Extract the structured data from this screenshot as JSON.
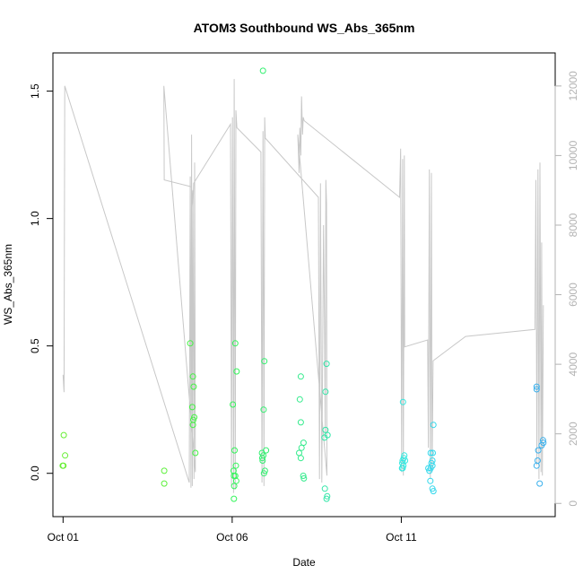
{
  "chart_data": {
    "type": "scatter",
    "title": "ATOM3 Southbound WS_Abs_365nm",
    "xlabel": "Date",
    "ylabel": "WS_Abs_365nm",
    "x_ticks": [
      "Oct 01",
      "Oct 06",
      "Oct 11"
    ],
    "y_ticks": [
      "0.0",
      "0.5",
      "1.0",
      "1.5"
    ],
    "y_tick_values": [
      0.0,
      0.5,
      1.0,
      1.5
    ],
    "y_right_ticks": [
      "0",
      "2000",
      "4000",
      "6000",
      "8000",
      "10000",
      "12000"
    ],
    "y_right_tick_values": [
      0,
      2000,
      4000,
      6000,
      8000,
      10000,
      12000
    ],
    "x_unit": "days after Oct 01",
    "xlim": [
      -0.3,
      14.55
    ],
    "ylim": [
      -0.17,
      1.65
    ],
    "y_right_lim": [
      -380,
      12950
    ],
    "right_axis_color": "#b3b3b3",
    "series": [
      {
        "values": [
          [
            0.02,
            0.15,
            "#66ee33"
          ],
          [
            0.06,
            0.07,
            "#66ee33"
          ],
          [
            -0.01,
            0.03,
            "#66ee33"
          ],
          [
            0.01,
            0.03,
            "#66ee33"
          ],
          [
            2.99,
            0.01,
            "#5cf03a"
          ],
          [
            2.99,
            -0.04,
            "#5cf03a"
          ],
          [
            3.76,
            0.51,
            "#44f444"
          ],
          [
            3.84,
            0.38,
            "#44f444"
          ],
          [
            3.86,
            0.34,
            "#44f444"
          ],
          [
            3.82,
            0.26,
            "#44f444"
          ],
          [
            3.88,
            0.22,
            "#44f444"
          ],
          [
            3.85,
            0.21,
            "#44f444"
          ],
          [
            3.84,
            0.19,
            "#44f444"
          ],
          [
            3.91,
            0.08,
            "#44f444"
          ],
          [
            5.02,
            0.27,
            "#33f55a"
          ],
          [
            5.09,
            0.51,
            "#33f55a"
          ],
          [
            5.13,
            0.4,
            "#33f55a"
          ],
          [
            5.07,
            0.09,
            "#33f55a"
          ],
          [
            5.11,
            0.03,
            "#33f55a"
          ],
          [
            5.04,
            0.01,
            "#33f55a"
          ],
          [
            5.05,
            -0.01,
            "#33f55a"
          ],
          [
            5.09,
            -0.01,
            "#33f55a"
          ],
          [
            5.12,
            -0.03,
            "#33f55a"
          ],
          [
            5.06,
            -0.05,
            "#33f55a"
          ],
          [
            5.05,
            -0.1,
            "#33f55a"
          ],
          [
            5.91,
            1.58,
            "#33f070"
          ],
          [
            5.88,
            0.08,
            "#33f070"
          ],
          [
            5.92,
            0.07,
            "#33f070"
          ],
          [
            5.89,
            0.06,
            "#33f070"
          ],
          [
            5.9,
            0.05,
            "#33f070"
          ],
          [
            5.95,
            0.44,
            "#33f070"
          ],
          [
            5.93,
            0.25,
            "#33f070"
          ],
          [
            6.0,
            0.09,
            "#33f070"
          ],
          [
            5.97,
            0.01,
            "#33f070"
          ],
          [
            5.94,
            0.0,
            "#33f070"
          ],
          [
            7.03,
            0.38,
            "#33eb8c"
          ],
          [
            7.0,
            0.29,
            "#33eb8c"
          ],
          [
            7.03,
            0.2,
            "#33eb8c"
          ],
          [
            7.11,
            0.12,
            "#33eb8c"
          ],
          [
            7.05,
            0.1,
            "#33eb8c"
          ],
          [
            6.98,
            0.08,
            "#33eb8c"
          ],
          [
            7.03,
            0.06,
            "#33eb8c"
          ],
          [
            7.1,
            -0.01,
            "#33eb8c"
          ],
          [
            7.12,
            -0.02,
            "#33eb8c"
          ],
          [
            7.79,
            0.43,
            "#33e6a8"
          ],
          [
            7.76,
            0.32,
            "#33e6a8"
          ],
          [
            7.76,
            0.17,
            "#33e6a8"
          ],
          [
            7.82,
            0.15,
            "#33e6a8"
          ],
          [
            7.73,
            0.14,
            "#33e6a8"
          ],
          [
            7.74,
            -0.06,
            "#33e6a8"
          ],
          [
            7.81,
            -0.09,
            "#33e6a8"
          ],
          [
            7.79,
            -0.1,
            "#33e6a8"
          ],
          [
            10.05,
            0.28,
            "#33e8e0"
          ],
          [
            10.09,
            0.07,
            "#33e8e0"
          ],
          [
            10.07,
            0.06,
            "#33e8e0"
          ],
          [
            10.04,
            0.05,
            "#33e8e0"
          ],
          [
            10.11,
            0.05,
            "#33e8e0"
          ],
          [
            10.03,
            0.04,
            "#33e8e0"
          ],
          [
            10.06,
            0.03,
            "#33e8e0"
          ],
          [
            10.04,
            0.02,
            "#33e8e0"
          ],
          [
            10.02,
            0.02,
            "#33e8e0"
          ],
          [
            10.95,
            0.19,
            "#33d8ec"
          ],
          [
            10.87,
            0.08,
            "#33d8ec"
          ],
          [
            10.93,
            0.08,
            "#33d8ec"
          ],
          [
            10.92,
            0.05,
            "#33d8ec"
          ],
          [
            10.89,
            0.04,
            "#33d8ec"
          ],
          [
            10.92,
            0.03,
            "#33d8ec"
          ],
          [
            10.8,
            0.02,
            "#33d8ec"
          ],
          [
            10.87,
            0.02,
            "#33d8ec"
          ],
          [
            10.83,
            0.01,
            "#33d8ec"
          ],
          [
            10.86,
            -0.03,
            "#33d8ec"
          ],
          [
            10.92,
            -0.06,
            "#33d8ec"
          ],
          [
            10.95,
            -0.07,
            "#33d8ec"
          ],
          [
            14.0,
            0.34,
            "#3ab0ec"
          ],
          [
            14.0,
            0.33,
            "#3ab0ec"
          ],
          [
            14.19,
            0.13,
            "#3ab0ec"
          ],
          [
            14.2,
            0.12,
            "#3ab0ec"
          ],
          [
            14.15,
            0.11,
            "#3ab0ec"
          ],
          [
            14.05,
            0.09,
            "#3ab0ec"
          ],
          [
            14.03,
            0.05,
            "#3ab0ec"
          ],
          [
            14.0,
            0.03,
            "#3ab0ec"
          ],
          [
            14.09,
            -0.04,
            "#3ab0ec"
          ]
        ]
      }
    ],
    "line_color": "#c8c8c8",
    "secondary_line_y_right": [
      [
        0.0,
        3700
      ],
      [
        0.03,
        3200
      ],
      [
        0.05,
        12000
      ],
      [
        3.73,
        600
      ],
      [
        3.76,
        9400
      ],
      [
        3.78,
        450
      ],
      [
        3.8,
        10600
      ],
      [
        3.82,
        500
      ],
      [
        3.84,
        9000
      ],
      [
        3.87,
        700
      ],
      [
        3.89,
        9800
      ],
      [
        3.91,
        900
      ],
      [
        2.98,
        12000
      ],
      [
        2.99,
        9300
      ],
      [
        3.8,
        9100
      ],
      [
        3.84,
        8500
      ],
      [
        3.86,
        9200
      ],
      [
        4.95,
        10900
      ],
      [
        4.98,
        500
      ],
      [
        5.01,
        11100
      ],
      [
        5.04,
        300
      ],
      [
        5.06,
        12200
      ],
      [
        5.09,
        400
      ],
      [
        5.11,
        11300
      ],
      [
        5.14,
        10800
      ],
      [
        5.85,
        10100
      ],
      [
        5.88,
        600
      ],
      [
        5.91,
        10700
      ],
      [
        5.94,
        500
      ],
      [
        5.96,
        11100
      ],
      [
        5.98,
        10500
      ],
      [
        7.55,
        8800
      ],
      [
        7.58,
        700
      ],
      [
        7.61,
        9200
      ],
      [
        7.65,
        600
      ],
      [
        7.7,
        8000
      ],
      [
        7.73,
        5200
      ],
      [
        7.75,
        1900
      ],
      [
        7.77,
        9300
      ],
      [
        7.79,
        8600
      ],
      [
        7.8,
        800
      ],
      [
        6.94,
        10600
      ],
      [
        6.98,
        9500
      ],
      [
        7.0,
        10800
      ],
      [
        7.03,
        10000
      ],
      [
        7.05,
        11700
      ],
      [
        7.08,
        10600
      ],
      [
        7.1,
        11100
      ],
      [
        7.13,
        11000
      ],
      [
        9.95,
        8800
      ],
      [
        9.98,
        10200
      ],
      [
        10.01,
        900
      ],
      [
        10.04,
        9900
      ],
      [
        10.06,
        800
      ],
      [
        10.09,
        10000
      ],
      [
        10.1,
        4500
      ],
      [
        10.78,
        4700
      ],
      [
        10.8,
        1600
      ],
      [
        10.83,
        9600
      ],
      [
        10.86,
        700
      ],
      [
        10.89,
        9500
      ],
      [
        10.91,
        900
      ],
      [
        10.94,
        4100
      ],
      [
        11.9,
        4800
      ],
      [
        13.95,
        5000
      ],
      [
        13.98,
        9300
      ],
      [
        14.01,
        1100
      ],
      [
        14.04,
        9600
      ],
      [
        14.07,
        700
      ],
      [
        14.1,
        9800
      ],
      [
        14.13,
        900
      ],
      [
        14.15,
        7500
      ],
      [
        14.17,
        800
      ],
      [
        14.2,
        5700
      ]
    ]
  }
}
